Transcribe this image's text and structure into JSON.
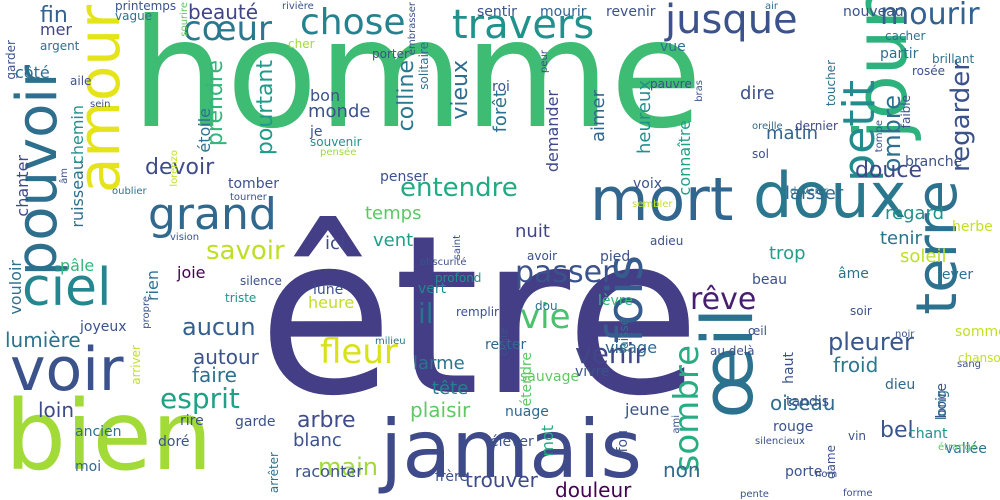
{
  "palette": [
    "#440154",
    "#472d7b",
    "#3b528b",
    "#2c728e",
    "#21918c",
    "#28ae80",
    "#5ec962",
    "#addc30",
    "#fde725"
  ],
  "words": [
    {
      "t": "être",
      "c": "#433e85"
    },
    {
      "t": "homme",
      "c": "#3fbc73"
    },
    {
      "t": "bien",
      "c": "#a2da37"
    },
    {
      "t": "jamais",
      "c": "#3e4a89"
    },
    {
      "t": "jour",
      "c": "#2db27d"
    },
    {
      "t": "œil",
      "c": "#2c728e"
    },
    {
      "t": "doux",
      "c": "#2a788e"
    },
    {
      "t": "voir",
      "c": "#3b528b"
    },
    {
      "t": "mort",
      "c": "#31668e"
    },
    {
      "t": "amour",
      "c": "#e5e419"
    },
    {
      "t": "pouvoir",
      "c": "#2e6f8e"
    },
    {
      "t": "terre",
      "c": "#2c718e"
    },
    {
      "t": "ciel",
      "c": "#24868e"
    },
    {
      "t": "fois",
      "c": "#365c8d"
    },
    {
      "t": "grand",
      "c": "#31688e"
    },
    {
      "t": "petit",
      "c": "#238a8d"
    },
    {
      "t": "jusque",
      "c": "#3b528b"
    },
    {
      "t": "travers",
      "c": "#21918c"
    },
    {
      "t": "chose",
      "c": "#26828e"
    },
    {
      "t": "cœur",
      "c": "#2a788e"
    },
    {
      "t": "sombre",
      "c": "#27ad81"
    },
    {
      "t": "fleur",
      "c": "#d8e219"
    },
    {
      "t": "vie",
      "c": "#4ac16d"
    },
    {
      "t": "rêve",
      "c": "#481f70"
    },
    {
      "t": "mourir",
      "c": "#34618d"
    },
    {
      "t": "passer",
      "c": "#3b528b"
    },
    {
      "t": "il",
      "c": "#2c728e"
    },
    {
      "t": "esprit",
      "c": "#1fa188"
    },
    {
      "t": "venir",
      "c": "#404688"
    },
    {
      "t": "entendre",
      "c": "#24aa83"
    },
    {
      "t": "savoir",
      "c": "#bddf26"
    },
    {
      "t": "regarder",
      "c": "#3b528b"
    },
    {
      "t": "aucun",
      "c": "#355f8d"
    },
    {
      "t": "main",
      "c": "#9fda3a"
    },
    {
      "t": "pleurer",
      "c": "#38588c"
    },
    {
      "t": "ombre",
      "c": "#2e6e8e"
    },
    {
      "t": "douce",
      "c": "#3e4989"
    },
    {
      "t": "devoir",
      "c": "#3e4c8a"
    },
    {
      "t": "vieux",
      "c": "#2f6c8e"
    },
    {
      "t": "colline",
      "c": "#2a788e"
    },
    {
      "t": "prendre",
      "c": "#32b67a"
    },
    {
      "t": "pourtant",
      "c": "#1e9b8a"
    },
    {
      "t": "fin",
      "c": "#34618d"
    },
    {
      "t": "beauté",
      "c": "#414487"
    },
    {
      "t": "trouver",
      "c": "#3e4a89"
    },
    {
      "t": "douleur",
      "c": "#440154"
    },
    {
      "t": "non",
      "c": "#31688e"
    },
    {
      "t": "arbre",
      "c": "#3e4c8a"
    },
    {
      "t": "bel",
      "c": "#3a548c"
    },
    {
      "t": "lumière",
      "c": "#2c728e"
    },
    {
      "t": "loin",
      "c": "#3e4a89"
    },
    {
      "t": "faire",
      "c": "#2c718e"
    },
    {
      "t": "froid",
      "c": "#2a778e"
    },
    {
      "t": "oiseau",
      "c": "#2e6d8e"
    },
    {
      "t": "autour",
      "c": "#3b528b"
    },
    {
      "t": "plaisir",
      "c": "#5ec962"
    },
    {
      "t": "larme",
      "c": "#2b748e"
    },
    {
      "t": "tête",
      "c": "#25838e"
    },
    {
      "t": "blanc",
      "c": "#3b528b"
    },
    {
      "t": "heureux",
      "c": "#21918c"
    },
    {
      "t": "connaître",
      "c": "#1fa188"
    },
    {
      "t": "demander",
      "c": "#3e4989"
    },
    {
      "t": "forêt",
      "c": "#2c728e"
    },
    {
      "t": "aimer",
      "c": "#31688e"
    },
    {
      "t": "matin",
      "c": "#32648e"
    },
    {
      "t": "étoile",
      "c": "#2c718e"
    },
    {
      "t": "monde",
      "c": "#3b528b"
    },
    {
      "t": "bon",
      "c": "#3b528b"
    },
    {
      "t": "nuit",
      "c": "#404588"
    },
    {
      "t": "vent",
      "c": "#1f9f88"
    },
    {
      "t": "temps",
      "c": "#5cc863"
    },
    {
      "t": "ici",
      "c": "#3e4a89"
    },
    {
      "t": "tenir",
      "c": "#2c728e"
    },
    {
      "t": "regard",
      "c": "#21918c"
    },
    {
      "t": "soleil",
      "c": "#bddf26"
    },
    {
      "t": "laisser",
      "c": "#31688e"
    },
    {
      "t": "trop",
      "c": "#1f9e89"
    },
    {
      "t": "dire",
      "c": "#3b528b"
    },
    {
      "t": "mer",
      "c": "#414487"
    },
    {
      "t": "côté",
      "c": "#2c728e"
    },
    {
      "t": "chanter",
      "c": "#3e4a89"
    },
    {
      "t": "vouloir",
      "c": "#2c718e"
    },
    {
      "t": "ruisseau",
      "c": "#2e6e8e"
    },
    {
      "t": "chemin",
      "c": "#21918c"
    },
    {
      "t": "pâle",
      "c": "#32b67a"
    },
    {
      "t": "rien",
      "c": "#2c728e"
    },
    {
      "t": "joie",
      "c": "#440154"
    },
    {
      "t": "joyeux",
      "c": "#3b528b"
    },
    {
      "t": "ancien",
      "c": "#2c728e"
    },
    {
      "t": "moi",
      "c": "#31688e"
    },
    {
      "t": "doré",
      "c": "#3b528b"
    },
    {
      "t": "heure",
      "c": "#c2df23"
    },
    {
      "t": "lune",
      "c": "#3b528b"
    },
    {
      "t": "vert",
      "c": "#24878e"
    },
    {
      "t": "lèvre",
      "c": "#35b779"
    },
    {
      "t": "pied",
      "c": "#3b528b"
    },
    {
      "t": "âme",
      "c": "#2c728e"
    },
    {
      "t": "rouge",
      "c": "#3b528b"
    },
    {
      "t": "tandis",
      "c": "#3b528b"
    },
    {
      "t": "dieu",
      "c": "#31688e"
    },
    {
      "t": "chant",
      "c": "#21918c"
    },
    {
      "t": "boire",
      "c": "#3b528b"
    },
    {
      "t": "vallée",
      "c": "#2c728e"
    },
    {
      "t": "visage",
      "c": "#31688e"
    },
    {
      "t": "mot",
      "c": "#25ab82"
    },
    {
      "t": "jeune",
      "c": "#3b528b"
    },
    {
      "t": "nuage",
      "c": "#31688e"
    },
    {
      "t": "sauvage",
      "c": "#5ec962"
    },
    {
      "t": "vivre",
      "c": "#3b528b"
    },
    {
      "t": "rester",
      "c": "#31688e"
    },
    {
      "t": "raconter",
      "c": "#3b528b"
    },
    {
      "t": "tomber",
      "c": "#3b528b"
    },
    {
      "t": "penser",
      "c": "#3b528b"
    },
    {
      "t": "voix",
      "c": "#3b528b"
    },
    {
      "t": "dernier",
      "c": "#3e4a89"
    },
    {
      "t": "vue",
      "c": "#2c728e"
    },
    {
      "t": "nouveau",
      "c": "#3b528b"
    },
    {
      "t": "mourir",
      "c": "#34618d"
    },
    {
      "t": "sentir",
      "c": "#3b528b"
    },
    {
      "t": "revenir",
      "c": "#3b528b"
    },
    {
      "t": "pauvre",
      "c": "#3b528b"
    },
    {
      "t": "cacher",
      "c": "#2c728e"
    },
    {
      "t": "partir",
      "c": "#2c728e"
    },
    {
      "t": "air",
      "c": "#2c728e"
    },
    {
      "t": "embrasser",
      "c": "#3b528b"
    },
    {
      "t": "rivière",
      "c": "#3b528b"
    },
    {
      "t": "sourire",
      "c": "#5ec962"
    },
    {
      "t": "argent",
      "c": "#2c728e"
    },
    {
      "t": "vague",
      "c": "#2c728e"
    },
    {
      "t": "garder",
      "c": "#3b528b"
    },
    {
      "t": "cher",
      "c": "#a2da37"
    },
    {
      "t": "porter",
      "c": "#3b528b"
    },
    {
      "t": "solitaire",
      "c": "#2c728e"
    },
    {
      "t": "aile",
      "c": "#3b528b"
    },
    {
      "t": "roi",
      "c": "#3b528b"
    },
    {
      "t": "sein",
      "c": "#3b528b"
    },
    {
      "t": "je",
      "c": "#3b528b"
    },
    {
      "t": "souvenir",
      "c": "#21918c"
    },
    {
      "t": "pensée",
      "c": "#a2da37"
    },
    {
      "t": "lorenzo",
      "c": "#c2df23"
    },
    {
      "t": "tourner",
      "c": "#3b528b"
    },
    {
      "t": "oublier",
      "c": "#2c728e"
    },
    {
      "t": "vision",
      "c": "#3b528b"
    },
    {
      "t": "saint",
      "c": "#3b528b"
    },
    {
      "t": "obscurité",
      "c": "#3b528b"
    },
    {
      "t": "profond",
      "c": "#21918c"
    },
    {
      "t": "adieu",
      "c": "#3b528b"
    },
    {
      "t": "silence",
      "c": "#3b528b"
    },
    {
      "t": "triste",
      "c": "#21918c"
    },
    {
      "t": "dou",
      "c": "#2c728e"
    },
    {
      "t": "avoir",
      "c": "#3b528b"
    },
    {
      "t": "beau",
      "c": "#3b528b"
    },
    {
      "t": "soir",
      "c": "#3b528b"
    },
    {
      "t": "lever",
      "c": "#2c728e"
    },
    {
      "t": "herbe",
      "c": "#c2df23"
    },
    {
      "t": "branche",
      "c": "#3b528b"
    },
    {
      "t": "sol",
      "c": "#3b528b"
    },
    {
      "t": "oreille",
      "c": "#31688e"
    },
    {
      "t": "faible",
      "c": "#3b528b"
    },
    {
      "t": "rosée",
      "c": "#3b528b"
    },
    {
      "t": "brillant",
      "c": "#2c728e"
    },
    {
      "t": "toucher",
      "c": "#2c728e"
    },
    {
      "t": "tombe",
      "c": "#3b528b"
    },
    {
      "t": "devenir",
      "c": "#2c728e"
    },
    {
      "t": "sembler",
      "c": "#c2df23"
    },
    {
      "t": "bras",
      "c": "#3b528b"
    },
    {
      "t": "œil",
      "c": "#3b528b"
    },
    {
      "t": "au delà",
      "c": "#3b528b"
    },
    {
      "t": "haut",
      "c": "#3b528b"
    },
    {
      "t": "long",
      "c": "#2c728e"
    },
    {
      "t": "sommeil",
      "c": "#c2df23"
    },
    {
      "t": "chanson",
      "c": "#c2df23"
    },
    {
      "t": "sang",
      "c": "#3b528b"
    },
    {
      "t": "noir",
      "c": "#3b528b"
    },
    {
      "t": "étrange",
      "c": "#5ec962"
    },
    {
      "t": "vin",
      "c": "#3b528b"
    },
    {
      "t": "silencieux",
      "c": "#3b528b"
    },
    {
      "t": "dame",
      "c": "#3b528b"
    },
    {
      "t": "ami",
      "c": "#3b528b"
    },
    {
      "t": "fou",
      "c": "#3b528b"
    },
    {
      "t": "élever",
      "c": "#3b528b"
    },
    {
      "t": "étendre",
      "c": "#5ec962"
    },
    {
      "t": "laisse",
      "c": "#2c728e"
    },
    {
      "t": "milieu",
      "c": "#2c728e"
    },
    {
      "t": "frère",
      "c": "#3b528b"
    },
    {
      "t": "croire",
      "c": "#3b528b"
    },
    {
      "t": "remplir",
      "c": "#3b528b"
    },
    {
      "t": "garde",
      "c": "#3b528b"
    },
    {
      "t": "rire",
      "c": "#3b528b"
    },
    {
      "t": "arriver",
      "c": "#c2df23"
    },
    {
      "t": "propre",
      "c": "#3b528b"
    },
    {
      "t": "arrêter",
      "c": "#2c728e"
    },
    {
      "t": "pente",
      "c": "#3b528b"
    },
    {
      "t": "porte",
      "c": "#3b528b"
    },
    {
      "t": "forme",
      "c": "#3b528b"
    },
    {
      "t": "nom",
      "c": "#3b528b"
    },
    {
      "t": "printemps",
      "c": "#3b528b"
    },
    {
      "t": "âm",
      "c": "#3b528b"
    },
    {
      "t": "peur",
      "c": "#3b528b"
    },
    {
      "t": "briser",
      "c": "#3b528b"
    },
    {
      "t": "ce",
      "c": "#3b528b"
    }
  ]
}
